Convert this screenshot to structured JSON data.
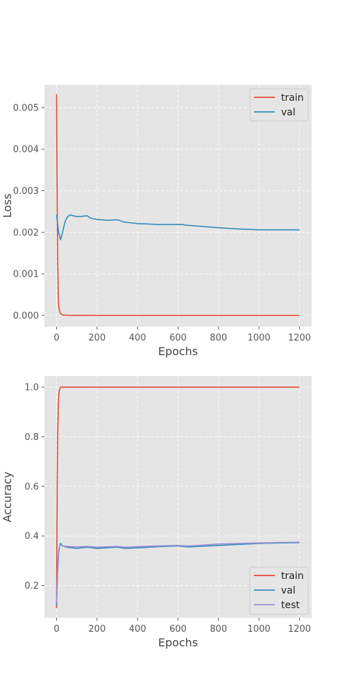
{
  "chart_data": [
    {
      "type": "line",
      "title": "",
      "xlabel": "Epochs",
      "ylabel": "Loss",
      "xlim": [
        -60,
        1260
      ],
      "ylim": [
        -0.00027,
        0.00555
      ],
      "xticks": [
        0,
        200,
        400,
        600,
        800,
        1000,
        1200
      ],
      "yticks": [
        0.0,
        0.001,
        0.002,
        0.003,
        0.004,
        0.005
      ],
      "ytick_decimals": 3,
      "grid": true,
      "legend_position": "top-right",
      "series": [
        {
          "name": "train",
          "color": "#E24A33",
          "x": [
            0,
            2,
            4,
            6,
            8,
            10,
            15,
            20,
            30,
            50,
            100,
            200,
            400,
            600,
            800,
            1000,
            1200
          ],
          "y": [
            0.00532,
            0.0035,
            0.0021,
            0.0012,
            0.0006,
            0.00025,
            0.0001,
            4e-05,
            1e-05,
            5e-06,
            3e-06,
            2e-06,
            2e-06,
            2e-06,
            2e-06,
            2e-06,
            2e-06
          ]
        },
        {
          "name": "val",
          "color": "#348ABD",
          "x": [
            0,
            10,
            20,
            30,
            40,
            50,
            60,
            70,
            80,
            100,
            120,
            150,
            170,
            200,
            250,
            300,
            310,
            330,
            400,
            500,
            600,
            620,
            640,
            700,
            800,
            900,
            1000,
            1100,
            1200
          ],
          "y": [
            0.00242,
            0.002,
            0.00182,
            0.002,
            0.00222,
            0.00234,
            0.0024,
            0.00242,
            0.0024,
            0.00238,
            0.00238,
            0.0024,
            0.00234,
            0.00231,
            0.00229,
            0.0023,
            0.00229,
            0.00225,
            0.00221,
            0.00219,
            0.00219,
            0.00219,
            0.00217,
            0.00215,
            0.00211,
            0.00208,
            0.00206,
            0.00206,
            0.00206
          ]
        }
      ]
    },
    {
      "type": "line",
      "title": "",
      "xlabel": "Epochs",
      "ylabel": "Accuracy",
      "xlim": [
        -60,
        1260
      ],
      "ylim": [
        0.07,
        1.045
      ],
      "xticks": [
        0,
        200,
        400,
        600,
        800,
        1000,
        1200
      ],
      "yticks": [
        0.2,
        0.4,
        0.6,
        0.8,
        1.0
      ],
      "ytick_decimals": 1,
      "grid": true,
      "legend_position": "bottom-right",
      "series": [
        {
          "name": "train",
          "color": "#E24A33",
          "x": [
            0,
            2,
            4,
            6,
            8,
            10,
            12,
            15,
            20,
            30,
            100,
            400,
            800,
            1200
          ],
          "y": [
            0.11,
            0.45,
            0.68,
            0.82,
            0.91,
            0.95,
            0.98,
            0.99,
            1.0,
            1.0,
            1.0,
            1.0,
            1.0,
            1.0
          ]
        },
        {
          "name": "val",
          "color": "#348ABD",
          "x": [
            0,
            5,
            10,
            15,
            20,
            30,
            50,
            100,
            150,
            200,
            300,
            340,
            400,
            500,
            600,
            650,
            700,
            800,
            900,
            1000,
            1100,
            1200
          ],
          "y": [
            0.12,
            0.25,
            0.33,
            0.36,
            0.37,
            0.36,
            0.355,
            0.35,
            0.355,
            0.35,
            0.355,
            0.35,
            0.352,
            0.357,
            0.36,
            0.356,
            0.358,
            0.362,
            0.366,
            0.37,
            0.372,
            0.373
          ]
        },
        {
          "name": "test",
          "color": "#988ED5",
          "x": [
            0,
            5,
            10,
            15,
            20,
            30,
            50,
            100,
            150,
            200,
            300,
            340,
            400,
            500,
            600,
            650,
            700,
            800,
            900,
            1000,
            1100,
            1200
          ],
          "y": [
            0.13,
            0.27,
            0.34,
            0.36,
            0.365,
            0.36,
            0.358,
            0.356,
            0.358,
            0.355,
            0.358,
            0.355,
            0.357,
            0.36,
            0.362,
            0.36,
            0.362,
            0.368,
            0.37,
            0.372,
            0.374,
            0.375
          ]
        }
      ]
    }
  ]
}
